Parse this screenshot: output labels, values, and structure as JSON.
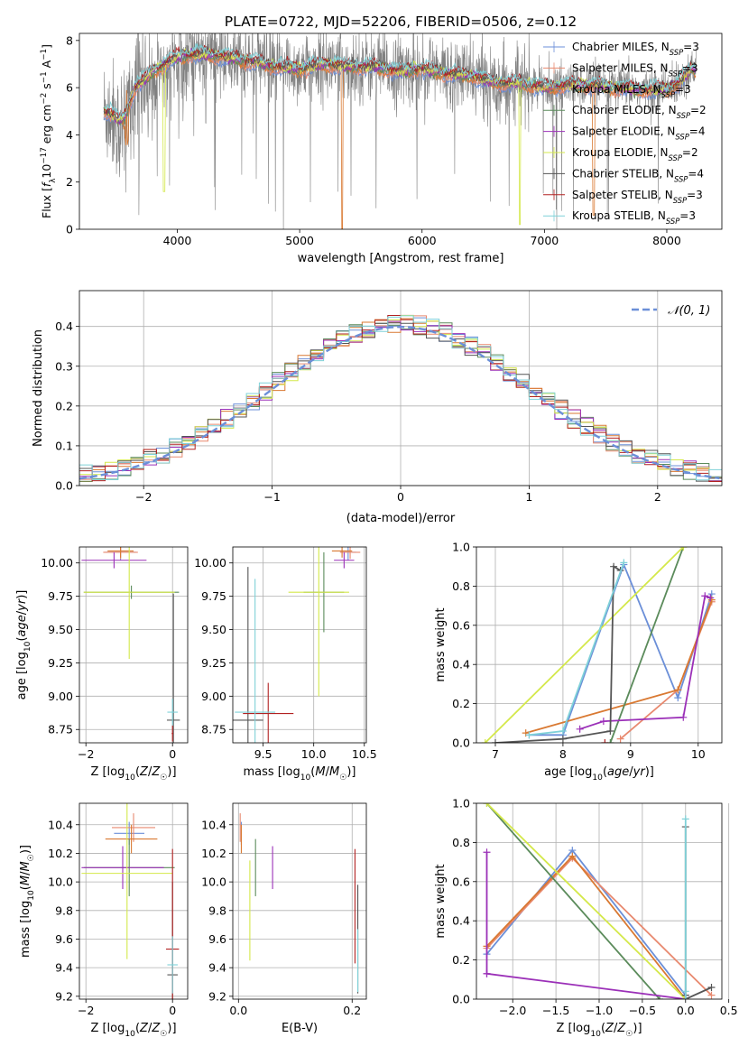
{
  "figure_title": "PLATE=0722, MJD=52206, FIBERID=0506, z=0.12",
  "colors": {
    "Chabrier MILES": "#6b8fd8",
    "Salpeter MILES": "#e8896f",
    "Kroupa MILES": "#d97932",
    "Chabrier ELODIE": "#5b8b5b",
    "Salpeter ELODIE": "#9b30b8",
    "Kroupa ELODIE": "#d4e84a",
    "Chabrier STELIB": "#555555",
    "Salpeter STELIB": "#b22222",
    "Kroupa STELIB": "#7fd1d8",
    "data": "#808080",
    "normal": "#6b8fd8"
  },
  "chart_data": [
    {
      "type": "line",
      "id": "spectrum",
      "title": "PLATE=0722, MJD=52206, FIBERID=0506, z=0.12",
      "xlabel": "wavelength [Angstrom, rest frame]",
      "ylabel": "Flux [f_λ10^-17 erg cm^-2 s^-1 A^-1]",
      "xlim": [
        3200,
        8450
      ],
      "ylim": [
        0,
        8.3
      ],
      "xticks": [
        "4000",
        "5000",
        "6000",
        "7000",
        "8000"
      ],
      "yticks": [
        "0",
        "2",
        "4",
        "6",
        "8"
      ],
      "legend": [
        "Chabrier MILES, N_SSP=3",
        "Salpeter MILES, N_SSP=3",
        "Kroupa MILES, N_SSP=3",
        "Chabrier ELODIE, N_SSP=2",
        "Salpeter ELODIE, N_SSP=4",
        "Kroupa ELODIE, N_SSP=2",
        "Chabrier STELIB, N_SSP=4",
        "Salpeter STELIB, N_SSP=3",
        "Kroupa STELIB, N_SSP=3"
      ],
      "legend_placement": "right",
      "continuum": {
        "x": [
          3400,
          3460,
          3520,
          3580,
          3650,
          3700,
          3800,
          3900,
          4000,
          4100,
          4200,
          4400,
          4600,
          4800,
          5000,
          5200,
          5400,
          5600,
          5800,
          6000,
          6200,
          6400,
          6600,
          6800,
          7000,
          7200,
          7400,
          7600,
          7800,
          8000,
          8100,
          8200
        ],
        "y": [
          5.0,
          4.9,
          4.6,
          4.8,
          6.0,
          6.2,
          6.7,
          7.0,
          7.3,
          7.4,
          7.4,
          7.3,
          7.1,
          6.9,
          6.8,
          7.0,
          6.9,
          6.9,
          6.7,
          6.8,
          6.6,
          6.5,
          6.2,
          6.2,
          6.0,
          6.1,
          6.1,
          6.0,
          5.9,
          5.9,
          6.2,
          6.8
        ]
      }
    },
    {
      "type": "line",
      "id": "residuals",
      "xlabel": "(data-model)/error",
      "ylabel": "Normed distribution",
      "xlim": [
        -2.5,
        2.5
      ],
      "ylim": [
        0,
        0.49
      ],
      "xticks": [
        "−2",
        "−1",
        "0",
        "1",
        "2"
      ],
      "yticks": [
        "0.0",
        "0.1",
        "0.2",
        "0.3",
        "0.4"
      ],
      "legend": [
        "𝒩(0, 1)"
      ],
      "legend_placement": "top-right",
      "bin_width": 0.1,
      "bin_start": -2.5
    },
    {
      "type": "scatter",
      "id": "age_vs_Z",
      "xlabel": "Z [log10(Z/Z☉)]",
      "ylabel": "age  [log10(age/yr)]",
      "xlim": [
        -2.15,
        0.35
      ],
      "ylim": [
        8.65,
        10.12
      ],
      "xticks": [
        "−2",
        "0"
      ],
      "yticks": [
        "8.75",
        "9.00",
        "9.25",
        "9.50",
        "9.75",
        "10.00"
      ],
      "points": [
        {
          "model": "Chabrier MILES",
          "x": -1.2,
          "y": 10.08,
          "xerr": 0.35,
          "yerr": 0.06
        },
        {
          "model": "Salpeter MILES",
          "x": -1.2,
          "y": 10.08,
          "xerr": 0.4,
          "yerr": 0.05
        },
        {
          "model": "Kroupa MILES",
          "x": -1.2,
          "y": 10.09,
          "xerr": 0.3,
          "yerr": 0.05
        },
        {
          "model": "Chabrier ELODIE",
          "x": -0.95,
          "y": 9.78,
          "xerr": 1.1,
          "yerr": 0.05
        },
        {
          "model": "Salpeter ELODIE",
          "x": -1.35,
          "y": 10.02,
          "xerr": 0.75,
          "yerr": 0.06
        },
        {
          "model": "Kroupa ELODIE",
          "x": -1.0,
          "y": 9.78,
          "xerr": 1.05,
          "yerr": 0.5
        },
        {
          "model": "Chabrier STELIB",
          "x": 0.02,
          "y": 8.82,
          "xerr": 0.15,
          "yerr": 0.95
        },
        {
          "model": "Salpeter STELIB",
          "x": 0.0,
          "y": 8.72,
          "xerr": 0.02,
          "yerr": 0.06
        },
        {
          "model": "Kroupa STELIB",
          "x": 0.0,
          "y": 8.88,
          "xerr": 0.12,
          "yerr": 0.1
        }
      ]
    },
    {
      "type": "scatter",
      "id": "age_vs_mass",
      "xlabel": "mass [log10(M/M☉)]",
      "ylabel": "",
      "xlim": [
        9.2,
        10.52
      ],
      "ylim": [
        8.65,
        10.12
      ],
      "xticks": [
        "9.5",
        "10.0",
        "10.5"
      ],
      "yticks": [
        "8.75",
        "9.00",
        "9.25",
        "9.50",
        "9.75",
        "10.00"
      ],
      "points": [
        {
          "model": "Chabrier MILES",
          "x": 10.34,
          "y": 10.08,
          "xerr": 0.08,
          "yerr": 0.06
        },
        {
          "model": "Salpeter MILES",
          "x": 10.36,
          "y": 10.08,
          "xerr": 0.1,
          "yerr": 0.05
        },
        {
          "model": "Kroupa MILES",
          "x": 10.28,
          "y": 10.09,
          "xerr": 0.1,
          "yerr": 0.05
        },
        {
          "model": "Chabrier ELODIE",
          "x": 10.1,
          "y": 9.78,
          "xerr": 0.2,
          "yerr": 0.3
        },
        {
          "model": "Salpeter ELODIE",
          "x": 10.3,
          "y": 10.02,
          "xerr": 0.1,
          "yerr": 0.06
        },
        {
          "model": "Kroupa ELODIE",
          "x": 10.05,
          "y": 9.78,
          "xerr": 0.3,
          "yerr": 0.78
        },
        {
          "model": "Chabrier STELIB",
          "x": 9.35,
          "y": 8.82,
          "xerr": 0.15,
          "yerr": 1.15
        },
        {
          "model": "Salpeter STELIB",
          "x": 9.55,
          "y": 8.87,
          "xerr": 0.25,
          "yerr": 0.23
        },
        {
          "model": "Kroupa STELIB",
          "x": 9.42,
          "y": 8.88,
          "xerr": 0.2,
          "yerr": 1.0
        }
      ]
    },
    {
      "type": "line",
      "id": "mass_weight_vs_age",
      "xlabel": "age  [log10(age/yr)]",
      "ylabel": "mass weight",
      "xlim": [
        6.72,
        10.35
      ],
      "ylim": [
        0,
        1.0
      ],
      "xticks": [
        "7",
        "8",
        "9",
        "10"
      ],
      "yticks": [
        "0.0",
        "0.2",
        "0.4",
        "0.6",
        "0.8",
        "1.0"
      ],
      "series": [
        {
          "model": "Chabrier MILES",
          "x": [
            7.5,
            8.0,
            8.9,
            9.7,
            10.2
          ],
          "y": [
            0.04,
            0.04,
            0.91,
            0.23,
            0.76
          ]
        },
        {
          "model": "Salpeter MILES",
          "x": [
            8.85,
            9.7,
            10.2
          ],
          "y": [
            0.02,
            0.27,
            0.72
          ]
        },
        {
          "model": "Kroupa MILES",
          "x": [
            7.45,
            9.7,
            10.2
          ],
          "y": [
            0.05,
            0.27,
            0.73
          ]
        },
        {
          "model": "Chabrier ELODIE",
          "x": [
            8.7,
            9.78
          ],
          "y": [
            0.0,
            1.0
          ]
        },
        {
          "model": "Salpeter ELODIE",
          "x": [
            8.25,
            8.6,
            9.78,
            10.1,
            10.18
          ],
          "y": [
            0.07,
            0.11,
            0.13,
            0.75,
            0.74
          ]
        },
        {
          "model": "Kroupa ELODIE",
          "x": [
            6.85,
            9.78
          ],
          "y": [
            0.0,
            1.0
          ]
        },
        {
          "model": "Chabrier STELIB",
          "x": [
            7.0,
            8.0,
            8.7,
            8.75,
            8.85
          ],
          "y": [
            0.0,
            0.02,
            0.06,
            0.9,
            0.88
          ]
        },
        {
          "model": "Salpeter STELIB",
          "x": [
            8.62
          ],
          "y": [
            0.0
          ]
        },
        {
          "model": "Kroupa STELIB",
          "x": [
            7.5,
            8.0,
            8.9
          ],
          "y": [
            0.04,
            0.06,
            0.92
          ]
        }
      ]
    },
    {
      "type": "scatter",
      "id": "mass_vs_Z",
      "xlabel": "Z [log10(Z/Z☉)]",
      "ylabel": "mass [log10(M/M☉)]",
      "xlim": [
        -2.15,
        0.35
      ],
      "ylim": [
        9.18,
        10.55
      ],
      "xticks": [
        "−2",
        "0"
      ],
      "yticks": [
        "9.2",
        "9.4",
        "9.6",
        "9.8",
        "10.0",
        "10.2",
        "10.4"
      ],
      "points": [
        {
          "model": "Chabrier MILES",
          "x": -1.0,
          "y": 10.34,
          "xerr": 0.35,
          "yerr": 0.08
        },
        {
          "model": "Salpeter MILES",
          "x": -0.9,
          "y": 10.38,
          "xerr": 0.5,
          "yerr": 0.1
        },
        {
          "model": "Kroupa MILES",
          "x": -0.95,
          "y": 10.3,
          "xerr": 0.6,
          "yerr": 0.1
        },
        {
          "model": "Chabrier ELODIE",
          "x": -1.0,
          "y": 10.1,
          "xerr": 1.05,
          "yerr": 0.2
        },
        {
          "model": "Salpeter ELODIE",
          "x": -1.15,
          "y": 10.1,
          "xerr": 0.95,
          "yerr": 0.15
        },
        {
          "model": "Kroupa ELODIE",
          "x": -1.05,
          "y": 10.06,
          "xerr": 1.05,
          "yerr": 0.6
        },
        {
          "model": "Chabrier STELIB",
          "x": 0.0,
          "y": 9.35,
          "xerr": 0.12,
          "yerr": 0.65
        },
        {
          "model": "Salpeter STELIB",
          "x": 0.0,
          "y": 9.53,
          "xerr": 0.15,
          "yerr": 0.7
        },
        {
          "model": "Kroupa STELIB",
          "x": 0.0,
          "y": 9.42,
          "xerr": 0.12,
          "yerr": 0.2
        }
      ]
    },
    {
      "type": "scatter",
      "id": "mass_vs_ebv",
      "xlabel": "E(B-V)",
      "ylabel": "",
      "xlim": [
        -0.01,
        0.225
      ],
      "ylim": [
        9.18,
        10.55
      ],
      "xticks": [
        "0.0",
        "0.2"
      ],
      "yticks": [
        "9.2",
        "9.4",
        "9.6",
        "9.8",
        "10.0",
        "10.2",
        "10.4"
      ],
      "points": [
        {
          "model": "Chabrier MILES",
          "x": 0.005,
          "y": 10.34,
          "xerr": 0,
          "yerr": 0.08
        },
        {
          "model": "Salpeter MILES",
          "x": 0.003,
          "y": 10.38,
          "xerr": 0,
          "yerr": 0.1
        },
        {
          "model": "Kroupa MILES",
          "x": 0.005,
          "y": 10.3,
          "xerr": 0,
          "yerr": 0.1
        },
        {
          "model": "Chabrier ELODIE",
          "x": 0.03,
          "y": 10.1,
          "xerr": 0,
          "yerr": 0.2
        },
        {
          "model": "Salpeter ELODIE",
          "x": 0.06,
          "y": 10.1,
          "xerr": 0,
          "yerr": 0.15
        },
        {
          "model": "Kroupa ELODIE",
          "x": 0.02,
          "y": 9.8,
          "xerr": 0,
          "yerr": 0.35
        },
        {
          "model": "Chabrier STELIB",
          "x": 0.21,
          "y": 9.6,
          "xerr": 0,
          "yerr": 0.38
        },
        {
          "model": "Salpeter STELIB",
          "x": 0.205,
          "y": 9.83,
          "xerr": 0,
          "yerr": 0.4
        },
        {
          "model": "Kroupa STELIB",
          "x": 0.21,
          "y": 9.45,
          "xerr": 0,
          "yerr": 0.22
        }
      ]
    },
    {
      "type": "line",
      "id": "mass_weight_vs_Z",
      "xlabel": "Z [log10(Z/Z☉)]",
      "ylabel": "mass weight",
      "xlim": [
        -2.42,
        0.42
      ],
      "ylim": [
        0,
        1.0
      ],
      "xticks": [
        "−2.0",
        "−1.5",
        "−1.0",
        "−0.5",
        "0.0",
        "0.5"
      ],
      "yticks": [
        "0.0",
        "0.2",
        "0.4",
        "0.6",
        "0.8",
        "1.0"
      ],
      "series": [
        {
          "model": "Chabrier MILES",
          "x": [
            -2.3,
            -1.31,
            0.0
          ],
          "y": [
            0.23,
            0.76,
            0.02
          ]
        },
        {
          "model": "Salpeter MILES",
          "x": [
            -2.3,
            -1.31,
            0.3
          ],
          "y": [
            0.26,
            0.72,
            0.02
          ]
        },
        {
          "model": "Kroupa MILES",
          "x": [
            -2.3,
            -1.31,
            0.0
          ],
          "y": [
            0.27,
            0.73,
            0.0
          ]
        },
        {
          "model": "Chabrier ELODIE",
          "x": [
            -2.3,
            -0.3
          ],
          "y": [
            1.0,
            0.0
          ]
        },
        {
          "model": "Salpeter ELODIE",
          "x": [
            -2.3,
            -2.3,
            -2.3,
            0.0
          ],
          "y": [
            0.75,
            0.13,
            0.13,
            0.0
          ]
        },
        {
          "model": "Kroupa ELODIE",
          "x": [
            -2.3,
            0.0
          ],
          "y": [
            1.0,
            0.0
          ]
        },
        {
          "model": "Chabrier STELIB",
          "x": [
            0.0,
            0.0,
            0.0,
            0.3
          ],
          "y": [
            0.88,
            0.02,
            0.0,
            0.06
          ]
        },
        {
          "model": "Salpeter STELIB",
          "x": [
            0.0
          ],
          "y": [
            0.0
          ]
        },
        {
          "model": "Kroupa STELIB",
          "x": [
            0.0,
            0.0,
            0.0
          ],
          "y": [
            0.92,
            0.04,
            0.0
          ]
        }
      ]
    }
  ]
}
